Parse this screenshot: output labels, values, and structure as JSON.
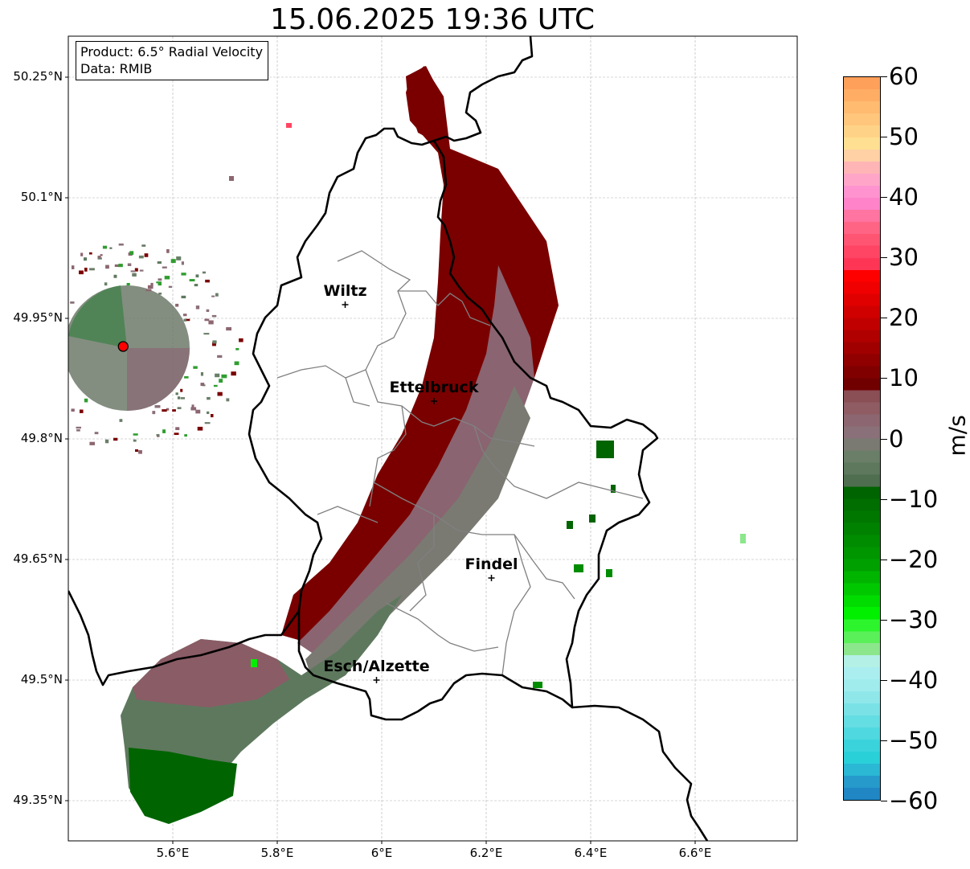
{
  "title": "15.06.2025 19:36 UTC",
  "info": {
    "product": "Product: 6.5° Radial Velocity",
    "data": "Data: RMIB"
  },
  "lat_ticks": [
    {
      "value": 50.25,
      "label": "50.25°N"
    },
    {
      "value": 50.1,
      "label": "50.1°N"
    },
    {
      "value": 49.95,
      "label": "49.95°N"
    },
    {
      "value": 49.8,
      "label": "49.8°N"
    },
    {
      "value": 49.65,
      "label": "49.65°N"
    },
    {
      "value": 49.5,
      "label": "49.5°N"
    },
    {
      "value": 49.35,
      "label": "49.35°N"
    }
  ],
  "lon_ticks": [
    {
      "value": 5.6,
      "label": "5.6°E"
    },
    {
      "value": 5.8,
      "label": "5.8°E"
    },
    {
      "value": 6.0,
      "label": "6°E"
    },
    {
      "value": 6.2,
      "label": "6.2°E"
    },
    {
      "value": 6.4,
      "label": "6.4°E"
    },
    {
      "value": 6.6,
      "label": "6.6°E"
    }
  ],
  "cities": [
    {
      "name": "Wiltz",
      "lon": 5.93,
      "lat": 49.967
    },
    {
      "name": "Ettelbruck",
      "lon": 6.1,
      "lat": 49.847
    },
    {
      "name": "Findel",
      "lon": 6.21,
      "lat": 49.627
    },
    {
      "name": "Esch/Alzette",
      "lon": 5.99,
      "lat": 49.5
    }
  ],
  "radar_site": {
    "lon": 5.505,
    "lat": 49.915
  },
  "colorbar": {
    "unit": "m/s",
    "min": -60,
    "max": 60,
    "ticks": [
      {
        "value": 60,
        "label": "60"
      },
      {
        "value": 50,
        "label": "50"
      },
      {
        "value": 40,
        "label": "40"
      },
      {
        "value": 30,
        "label": "30"
      },
      {
        "value": 20,
        "label": "20"
      },
      {
        "value": 10,
        "label": "10"
      },
      {
        "value": 0,
        "label": "0"
      },
      {
        "value": -10,
        "label": "−10"
      },
      {
        "value": -20,
        "label": "−20"
      },
      {
        "value": -30,
        "label": "−30"
      },
      {
        "value": -40,
        "label": "−40"
      },
      {
        "value": -50,
        "label": "−50"
      },
      {
        "value": -60,
        "label": "−60"
      }
    ],
    "colors_top_to_bottom": [
      "#ffa05a",
      "#ffad65",
      "#ffbb70",
      "#ffc67c",
      "#ffd387",
      "#ffe092",
      "#ffd1a5",
      "#ffb5b5",
      "#ffa6c8",
      "#ff93d0",
      "#ff83c8",
      "#ff74a0",
      "#ff6485",
      "#ff5472",
      "#ff4563",
      "#ff3555",
      "#ff0000",
      "#f00000",
      "#e00000",
      "#d00000",
      "#c00000",
      "#b00000",
      "#a00000",
      "#900000",
      "#800000",
      "#700000",
      "#8a4e55",
      "#8f5c64",
      "#8c6670",
      "#8a7078",
      "#7a7a72",
      "#6a7e68",
      "#5e785e",
      "#4f6e4f",
      "#006400",
      "#006e00",
      "#007800",
      "#008200",
      "#008c00",
      "#009600",
      "#00a000",
      "#00b400",
      "#00c800",
      "#00dc00",
      "#00f000",
      "#2df52d",
      "#5af05a",
      "#8ce68c",
      "#b4f0e6",
      "#aaeef0",
      "#a0eced",
      "#8fe7ea",
      "#7ae2e6",
      "#64dde3",
      "#4fd8df",
      "#3ad3dc",
      "#2ad0d8",
      "#2ab8d5",
      "#259acb",
      "#2086c4"
    ]
  },
  "legend_colors": {
    "inbound_strong": "#006400",
    "inbound_weak": "#5e785e",
    "neutral": "#8c6670",
    "outbound_weak": "#8a4e55",
    "outbound_strong": "#7a0000",
    "radar_marker": "#ff0000",
    "border": "#000000",
    "canton_lines": "#808080"
  }
}
